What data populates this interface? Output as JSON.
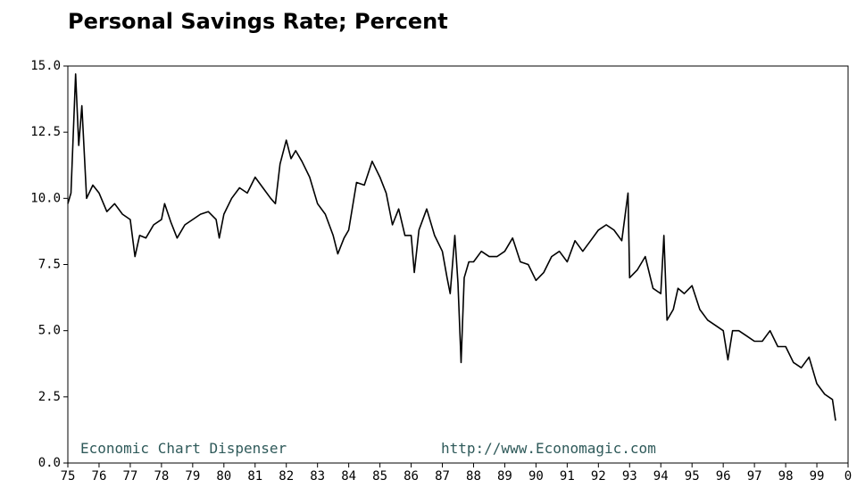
{
  "chart_data": {
    "type": "line",
    "title": "Personal Savings Rate; Percent",
    "annotations": [
      "Economic Chart Dispenser",
      "http://www.Economagic.com"
    ],
    "xlim": [
      1975,
      2000
    ],
    "ylim": [
      0,
      15
    ],
    "yticks": [
      {
        "value": 0,
        "label": "0.0"
      },
      {
        "value": 2.5,
        "label": "2.5"
      },
      {
        "value": 5,
        "label": "5.0"
      },
      {
        "value": 7.5,
        "label": "7.5"
      },
      {
        "value": 10,
        "label": "10.0"
      },
      {
        "value": 12.5,
        "label": "12.5"
      },
      {
        "value": 15,
        "label": "15.0"
      }
    ],
    "xticks": [
      {
        "value": 1975,
        "label": "75"
      },
      {
        "value": 1976,
        "label": "76"
      },
      {
        "value": 1977,
        "label": "77"
      },
      {
        "value": 1978,
        "label": "78"
      },
      {
        "value": 1979,
        "label": "79"
      },
      {
        "value": 1980,
        "label": "80"
      },
      {
        "value": 1981,
        "label": "81"
      },
      {
        "value": 1982,
        "label": "82"
      },
      {
        "value": 1983,
        "label": "83"
      },
      {
        "value": 1984,
        "label": "84"
      },
      {
        "value": 1985,
        "label": "85"
      },
      {
        "value": 1986,
        "label": "86"
      },
      {
        "value": 1987,
        "label": "87"
      },
      {
        "value": 1988,
        "label": "88"
      },
      {
        "value": 1989,
        "label": "89"
      },
      {
        "value": 1990,
        "label": "90"
      },
      {
        "value": 1991,
        "label": "91"
      },
      {
        "value": 1992,
        "label": "92"
      },
      {
        "value": 1993,
        "label": "93"
      },
      {
        "value": 1994,
        "label": "94"
      },
      {
        "value": 1995,
        "label": "95"
      },
      {
        "value": 1996,
        "label": "96"
      },
      {
        "value": 1997,
        "label": "97"
      },
      {
        "value": 1998,
        "label": "98"
      },
      {
        "value": 1999,
        "label": "99"
      },
      {
        "value": 2000,
        "label": "0"
      }
    ],
    "grid": false,
    "color": "#000000",
    "x": [
      1975.0,
      1975.1,
      1975.25,
      1975.35,
      1975.45,
      1975.6,
      1975.8,
      1976.0,
      1976.25,
      1976.5,
      1976.75,
      1977.0,
      1977.15,
      1977.3,
      1977.5,
      1977.75,
      1978.0,
      1978.1,
      1978.3,
      1978.5,
      1978.75,
      1979.0,
      1979.25,
      1979.5,
      1979.75,
      1979.85,
      1980.0,
      1980.25,
      1980.5,
      1980.75,
      1981.0,
      1981.25,
      1981.5,
      1981.65,
      1981.8,
      1982.0,
      1982.15,
      1982.3,
      1982.5,
      1982.75,
      1983.0,
      1983.25,
      1983.5,
      1983.65,
      1983.85,
      1984.0,
      1984.25,
      1984.5,
      1984.75,
      1985.0,
      1985.2,
      1985.4,
      1985.6,
      1985.8,
      1986.0,
      1986.1,
      1986.25,
      1986.5,
      1986.75,
      1987.0,
      1987.15,
      1987.25,
      1987.4,
      1987.5,
      1987.6,
      1987.7,
      1987.85,
      1988.0,
      1988.25,
      1988.5,
      1988.75,
      1989.0,
      1989.25,
      1989.5,
      1989.75,
      1990.0,
      1990.25,
      1990.5,
      1990.75,
      1991.0,
      1991.25,
      1991.5,
      1991.75,
      1992.0,
      1992.25,
      1992.5,
      1992.75,
      1992.95,
      1993.0,
      1993.25,
      1993.5,
      1993.75,
      1994.0,
      1994.1,
      1994.2,
      1994.4,
      1994.55,
      1994.75,
      1995.0,
      1995.25,
      1995.5,
      1995.75,
      1996.0,
      1996.15,
      1996.3,
      1996.5,
      1996.75,
      1997.0,
      1997.25,
      1997.5,
      1997.75,
      1998.0,
      1998.25,
      1998.5,
      1998.75,
      1999.0,
      1999.25,
      1999.5,
      1999.6
    ],
    "values": [
      9.8,
      10.2,
      14.7,
      12.0,
      13.5,
      10.0,
      10.5,
      10.2,
      9.5,
      9.8,
      9.4,
      9.2,
      7.8,
      8.6,
      8.5,
      9.0,
      9.2,
      9.8,
      9.1,
      8.5,
      9.0,
      9.2,
      9.4,
      9.5,
      9.2,
      8.5,
      9.4,
      10.0,
      10.4,
      10.2,
      10.8,
      10.4,
      10.0,
      9.8,
      11.3,
      12.2,
      11.5,
      11.8,
      11.4,
      10.8,
      9.8,
      9.4,
      8.6,
      7.9,
      8.5,
      8.8,
      10.6,
      10.5,
      11.4,
      10.8,
      10.2,
      9.0,
      9.6,
      8.6,
      8.6,
      7.2,
      8.8,
      9.6,
      8.6,
      8.0,
      7.0,
      6.4,
      8.6,
      6.8,
      3.8,
      7.0,
      7.6,
      7.6,
      8.0,
      7.8,
      7.8,
      8.0,
      8.5,
      7.6,
      7.5,
      6.9,
      7.2,
      7.8,
      8.0,
      7.6,
      8.4,
      8.0,
      8.4,
      8.8,
      9.0,
      8.8,
      8.4,
      10.2,
      7.0,
      7.3,
      7.8,
      6.6,
      6.4,
      8.6,
      5.4,
      5.8,
      6.6,
      6.4,
      6.7,
      5.8,
      5.4,
      5.2,
      5.0,
      3.9,
      5.0,
      5.0,
      4.8,
      4.6,
      4.6,
      5.0,
      4.4,
      4.4,
      3.8,
      3.6,
      4.0,
      3.0,
      2.6,
      2.4,
      1.6
    ]
  }
}
